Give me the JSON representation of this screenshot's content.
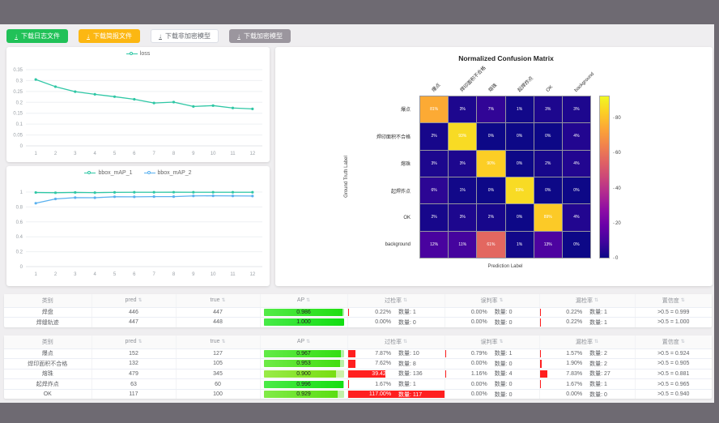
{
  "toolbar": {
    "buttons": [
      {
        "label": "下载日志文件",
        "style": "green"
      },
      {
        "label": "下载简报文件",
        "style": "orange"
      },
      {
        "label": "下载非加密模型",
        "style": "plain"
      },
      {
        "label": "下载加密模型",
        "style": "gray"
      }
    ]
  },
  "chart_data": [
    {
      "type": "line",
      "legend": [
        "loss"
      ],
      "x": [
        1,
        2,
        3,
        4,
        5,
        6,
        7,
        8,
        9,
        10,
        11,
        12
      ],
      "series": [
        {
          "name": "loss",
          "color": "#2fc7a5",
          "values": [
            0.305,
            0.272,
            0.249,
            0.237,
            0.226,
            0.214,
            0.197,
            0.201,
            0.181,
            0.185,
            0.174,
            0.17
          ]
        }
      ],
      "ylim": [
        0,
        0.35
      ],
      "yticks": [
        0,
        0.05,
        0.1,
        0.15,
        0.2,
        0.25,
        0.3,
        0.35
      ]
    },
    {
      "type": "line",
      "legend": [
        "bbox_mAP_1",
        "bbox_mAP_2"
      ],
      "x": [
        1,
        2,
        3,
        4,
        5,
        6,
        7,
        8,
        9,
        10,
        11,
        12
      ],
      "series": [
        {
          "name": "bbox_mAP_1",
          "color": "#2fc7a5",
          "values": [
            0.994,
            0.991,
            0.995,
            0.992,
            0.996,
            0.997,
            0.997,
            0.998,
            0.997,
            0.997,
            0.997,
            0.997
          ]
        },
        {
          "name": "bbox_mAP_2",
          "color": "#5ab1ef",
          "values": [
            0.85,
            0.908,
            0.925,
            0.924,
            0.937,
            0.936,
            0.939,
            0.939,
            0.948,
            0.95,
            0.948,
            0.947
          ]
        }
      ],
      "ylim": [
        0,
        1
      ],
      "yticks": [
        0,
        0.2,
        0.4,
        0.6,
        0.8,
        1
      ]
    },
    {
      "type": "heatmap",
      "title": "Normalized Confusion Matrix",
      "classes": [
        "爆点",
        "焊印面积不合格",
        "熔珠",
        "起焊炸点",
        "OK",
        "background"
      ],
      "xlabel": "Prediction Label",
      "ylabel": "Ground Truth Label",
      "unit": "%",
      "matrix": [
        [
          81,
          3,
          7,
          1,
          3,
          3
        ],
        [
          2,
          93,
          0,
          0,
          0,
          4
        ],
        [
          3,
          3,
          90,
          0,
          2,
          4
        ],
        [
          6,
          1,
          0,
          93,
          0,
          0
        ],
        [
          2,
          3,
          2,
          0,
          89,
          4
        ],
        [
          12,
          11,
          61,
          1,
          13,
          0
        ]
      ],
      "colorbar_ticks": [
        0,
        20,
        40,
        60,
        80
      ],
      "colorbar_max": 93,
      "colormap": "plasma"
    }
  ],
  "tables": {
    "headers": [
      "类别",
      "pred",
      "true",
      "AP",
      "过检率",
      "误判率",
      "漏检率",
      "置信度"
    ],
    "count_label": "数量",
    "groups": [
      {
        "rows": [
          {
            "name": "焊盘",
            "pred": 446,
            "true": 447,
            "ap": 0.986,
            "over_pct": 0.22,
            "over_n": 1,
            "mis_pct": 0.0,
            "mis_n": 0,
            "miss_pct": 0.22,
            "miss_n": 1,
            "conf": ">0.5 = 0.999"
          },
          {
            "name": "焊缝轨迹",
            "pred": 447,
            "true": 448,
            "ap": 1.0,
            "over_pct": 0.0,
            "over_n": 0,
            "mis_pct": 0.0,
            "mis_n": 0,
            "miss_pct": 0.22,
            "miss_n": 1,
            "conf": ">0.5 = 1.000"
          }
        ]
      },
      {
        "rows": [
          {
            "name": "爆点",
            "pred": 152,
            "true": 127,
            "ap": 0.967,
            "over_pct": 7.87,
            "over_n": 10,
            "mis_pct": 0.79,
            "mis_n": 1,
            "miss_pct": 1.57,
            "miss_n": 2,
            "conf": ">0.5 = 0.924"
          },
          {
            "name": "焊印面积不合格",
            "pred": 132,
            "true": 105,
            "ap": 0.953,
            "over_pct": 7.62,
            "over_n": 8,
            "mis_pct": 0.0,
            "mis_n": 0,
            "miss_pct": 1.9,
            "miss_n": 2,
            "conf": ">0.5 = 0.905"
          },
          {
            "name": "熔珠",
            "pred": 479,
            "true": 345,
            "ap": 0.9,
            "over_pct": 39.42,
            "over_n": 136,
            "mis_pct": 1.16,
            "mis_n": 4,
            "miss_pct": 7.83,
            "miss_n": 27,
            "conf": ">0.5 = 0.881"
          },
          {
            "name": "起焊炸点",
            "pred": 63,
            "true": 60,
            "ap": 0.996,
            "over_pct": 1.67,
            "over_n": 1,
            "mis_pct": 0.0,
            "mis_n": 0,
            "miss_pct": 1.67,
            "miss_n": 1,
            "conf": ">0.5 = 0.965"
          },
          {
            "name": "OK",
            "pred": 117,
            "true": 100,
            "ap": 0.929,
            "over_pct": 117.0,
            "over_n": 117,
            "mis_pct": 0.0,
            "mis_n": 0,
            "miss_pct": 0.0,
            "miss_n": 0,
            "conf": ">0.5 = 0.940"
          }
        ]
      }
    ]
  }
}
